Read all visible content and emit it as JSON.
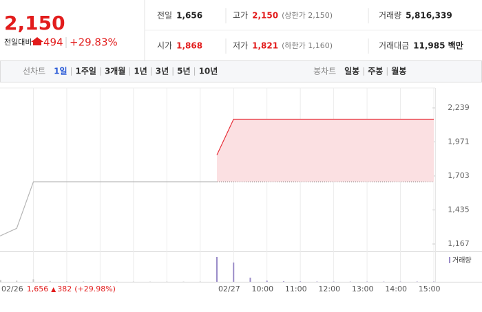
{
  "header": {
    "price": "2,150",
    "change_label": "전일대비",
    "change": "494",
    "rate": "+29.83%"
  },
  "stats": [
    {
      "label": "전일",
      "value": "1,656"
    },
    {
      "label": "고가",
      "value": "2,150",
      "note": "(상한가 2,150)"
    },
    {
      "label": "거래량",
      "value": "5,816,339"
    },
    {
      "label": "시가",
      "value": "1,868"
    },
    {
      "label": "저가",
      "value": "1,821",
      "note": "(하한가 1,160)"
    },
    {
      "label": "거래대금",
      "value": "11,985 백만"
    }
  ],
  "tabs": {
    "line_label": "선차트",
    "line_items": [
      "1일",
      "1주일",
      "3개월",
      "1년",
      "3년",
      "5년",
      "10년"
    ],
    "selected": 0,
    "candle_label": "봉차트",
    "candle_items": [
      "일봉",
      "주봉",
      "월봉"
    ]
  },
  "chart_data": {
    "type": "line",
    "categories": [
      "02/26",
      null,
      null,
      null,
      null,
      null,
      null,
      null,
      null,
      null,
      null,
      null,
      null,
      "02/27",
      null,
      "10:00",
      null,
      "11:00",
      null,
      "12:00",
      null,
      "13:00",
      null,
      "14:00",
      null,
      "15:00",
      null
    ],
    "series": [
      {
        "color": "#b4b4b4",
        "values": [
          1230,
          1290,
          1656,
          1656,
          1656,
          1656,
          1656,
          1656,
          1656,
          1656,
          1656,
          1656,
          1656,
          1656,
          null,
          null,
          null,
          null,
          null,
          null,
          null,
          null,
          null,
          null,
          null,
          null,
          null
        ]
      },
      {
        "color": "#e8303a",
        "values": [
          null,
          null,
          null,
          null,
          null,
          null,
          null,
          null,
          null,
          null,
          null,
          null,
          null,
          1868,
          2150,
          2150,
          2150,
          2150,
          2150,
          2150,
          2150,
          2150,
          2150,
          2150,
          2150,
          2150,
          2150
        ]
      }
    ],
    "baseline": 1656,
    "fill": "#fbe0e2",
    "ylim": [
      1113,
      2396
    ],
    "yticks": [
      {
        "value": 2239,
        "label": "2,239"
      },
      {
        "value": 1971,
        "label": "1,971"
      },
      {
        "value": 1703,
        "label": "1,703"
      },
      {
        "value": 1435,
        "label": "1,435"
      },
      {
        "value": 1167,
        "label": "1,167"
      }
    ],
    "volume": {
      "name": "거래량",
      "color": "#9a8cc8",
      "prev_color": "#c8c8c8",
      "values": [
        60000,
        40000,
        90000,
        30000,
        20000,
        15000,
        10000,
        10000,
        8000,
        8000,
        8000,
        8000,
        10000,
        900000,
        700000,
        150000,
        40000,
        20000,
        15000,
        10000,
        10000,
        8000,
        8000,
        8000,
        8000,
        10000,
        10000
      ],
      "ylim": [
        0,
        1000000
      ]
    },
    "footer": {
      "price": "1,656",
      "change": "382",
      "rate": "(+29.98%)"
    }
  }
}
